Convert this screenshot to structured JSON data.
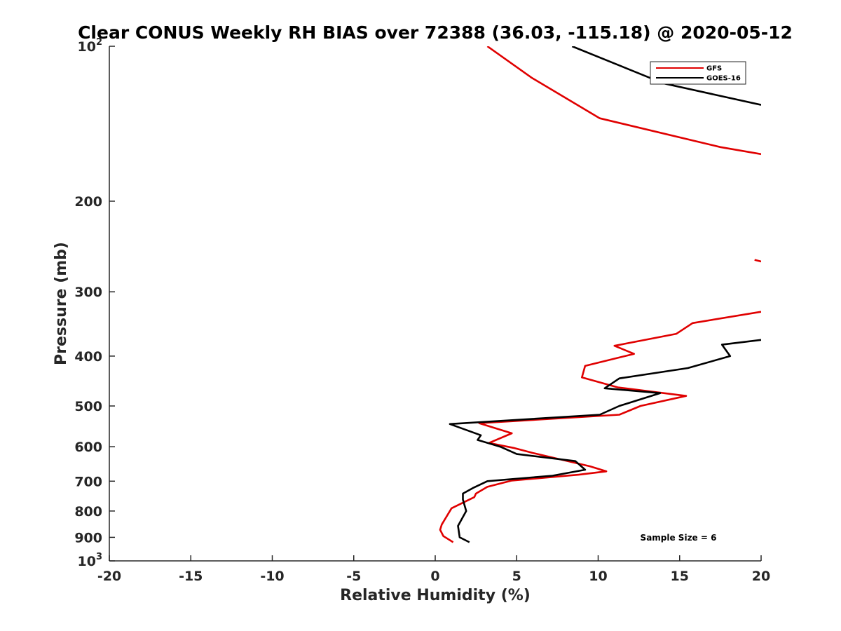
{
  "chart_data": {
    "type": "line",
    "title": "Clear CONUS Weekly RH BIAS over 72388 (36.03, -115.18) @ 2020-05-12",
    "xlabel": "Relative Humidity (%)",
    "ylabel": "Pressure (mb)",
    "xlim": [
      -20,
      20
    ],
    "ylim": [
      1000,
      100
    ],
    "yscale": "log",
    "y_reversed": true,
    "grid": false,
    "legend_position": "top-right",
    "x_ticks": [
      "-20",
      "-15",
      "-10",
      "-5",
      "0",
      "5",
      "10",
      "15",
      "20"
    ],
    "y_ticks": [
      {
        "value": 100,
        "base": "10",
        "exp": "2"
      },
      {
        "value": 200,
        "label": "200"
      },
      {
        "value": 300,
        "label": "300"
      },
      {
        "value": 400,
        "label": "400"
      },
      {
        "value": 500,
        "label": "500"
      },
      {
        "value": 600,
        "label": "600"
      },
      {
        "value": 700,
        "label": "700"
      },
      {
        "value": 800,
        "label": "800"
      },
      {
        "value": 900,
        "label": "900"
      },
      {
        "value": 1000,
        "base": "10",
        "exp": "3"
      }
    ],
    "annotation": "Sample Size = 6",
    "series": [
      {
        "name": "GFS",
        "color": "#e00000",
        "segments": [
          [
            [
              3.2,
              100
            ],
            [
              5.9,
              115
            ],
            [
              10.1,
              138
            ],
            [
              17.5,
              157
            ],
            [
              20,
              162
            ]
          ],
          [
            [
              19.6,
              260
            ],
            [
              20,
              262
            ]
          ],
          [
            [
              20,
              328
            ],
            [
              15.8,
              345
            ],
            [
              14.8,
              362
            ],
            [
              11,
              382
            ],
            [
              12.2,
              396
            ],
            [
              9.2,
              418
            ],
            [
              9.0,
              440
            ],
            [
              11.2,
              460
            ],
            [
              15.4,
              478
            ],
            [
              12.6,
              500
            ],
            [
              11.3,
              520
            ],
            [
              2.7,
              540
            ],
            [
              4.7,
              565
            ],
            [
              3.3,
              590
            ],
            [
              4.8,
              603
            ],
            [
              6.0,
              617
            ],
            [
              9.5,
              655
            ],
            [
              10.5,
              670
            ],
            [
              8.8,
              680
            ],
            [
              4.7,
              698
            ],
            [
              3.2,
              718
            ],
            [
              2.5,
              740
            ],
            [
              2.4,
              752
            ],
            [
              1.0,
              790
            ],
            [
              0.4,
              850
            ],
            [
              0.3,
              870
            ],
            [
              0.5,
              895
            ],
            [
              1.1,
              920
            ]
          ]
        ]
      },
      {
        "name": "GOES-16",
        "color": "#000000",
        "segments": [
          [
            [
              8.4,
              100
            ],
            [
              14.0,
              118
            ],
            [
              20,
              130
            ]
          ],
          [
            [
              20,
              372
            ],
            [
              17.6,
              380
            ],
            [
              18.1,
              400
            ],
            [
              15.5,
              422
            ],
            [
              11.3,
              442
            ],
            [
              10.4,
              462
            ],
            [
              13.8,
              472
            ],
            [
              11.3,
              500
            ],
            [
              10.1,
              520
            ],
            [
              0.9,
              542
            ],
            [
              2.8,
              570
            ],
            [
              2.6,
              582
            ],
            [
              4.0,
              600
            ],
            [
              5.0,
              620
            ],
            [
              8.6,
              640
            ],
            [
              9.2,
              665
            ],
            [
              7.2,
              683
            ],
            [
              3.2,
              700
            ],
            [
              2.3,
              722
            ],
            [
              1.7,
              740
            ],
            [
              1.7,
              760
            ],
            [
              1.9,
              800
            ],
            [
              1.4,
              855
            ],
            [
              1.5,
              900
            ],
            [
              2.1,
              920
            ]
          ]
        ]
      }
    ]
  }
}
